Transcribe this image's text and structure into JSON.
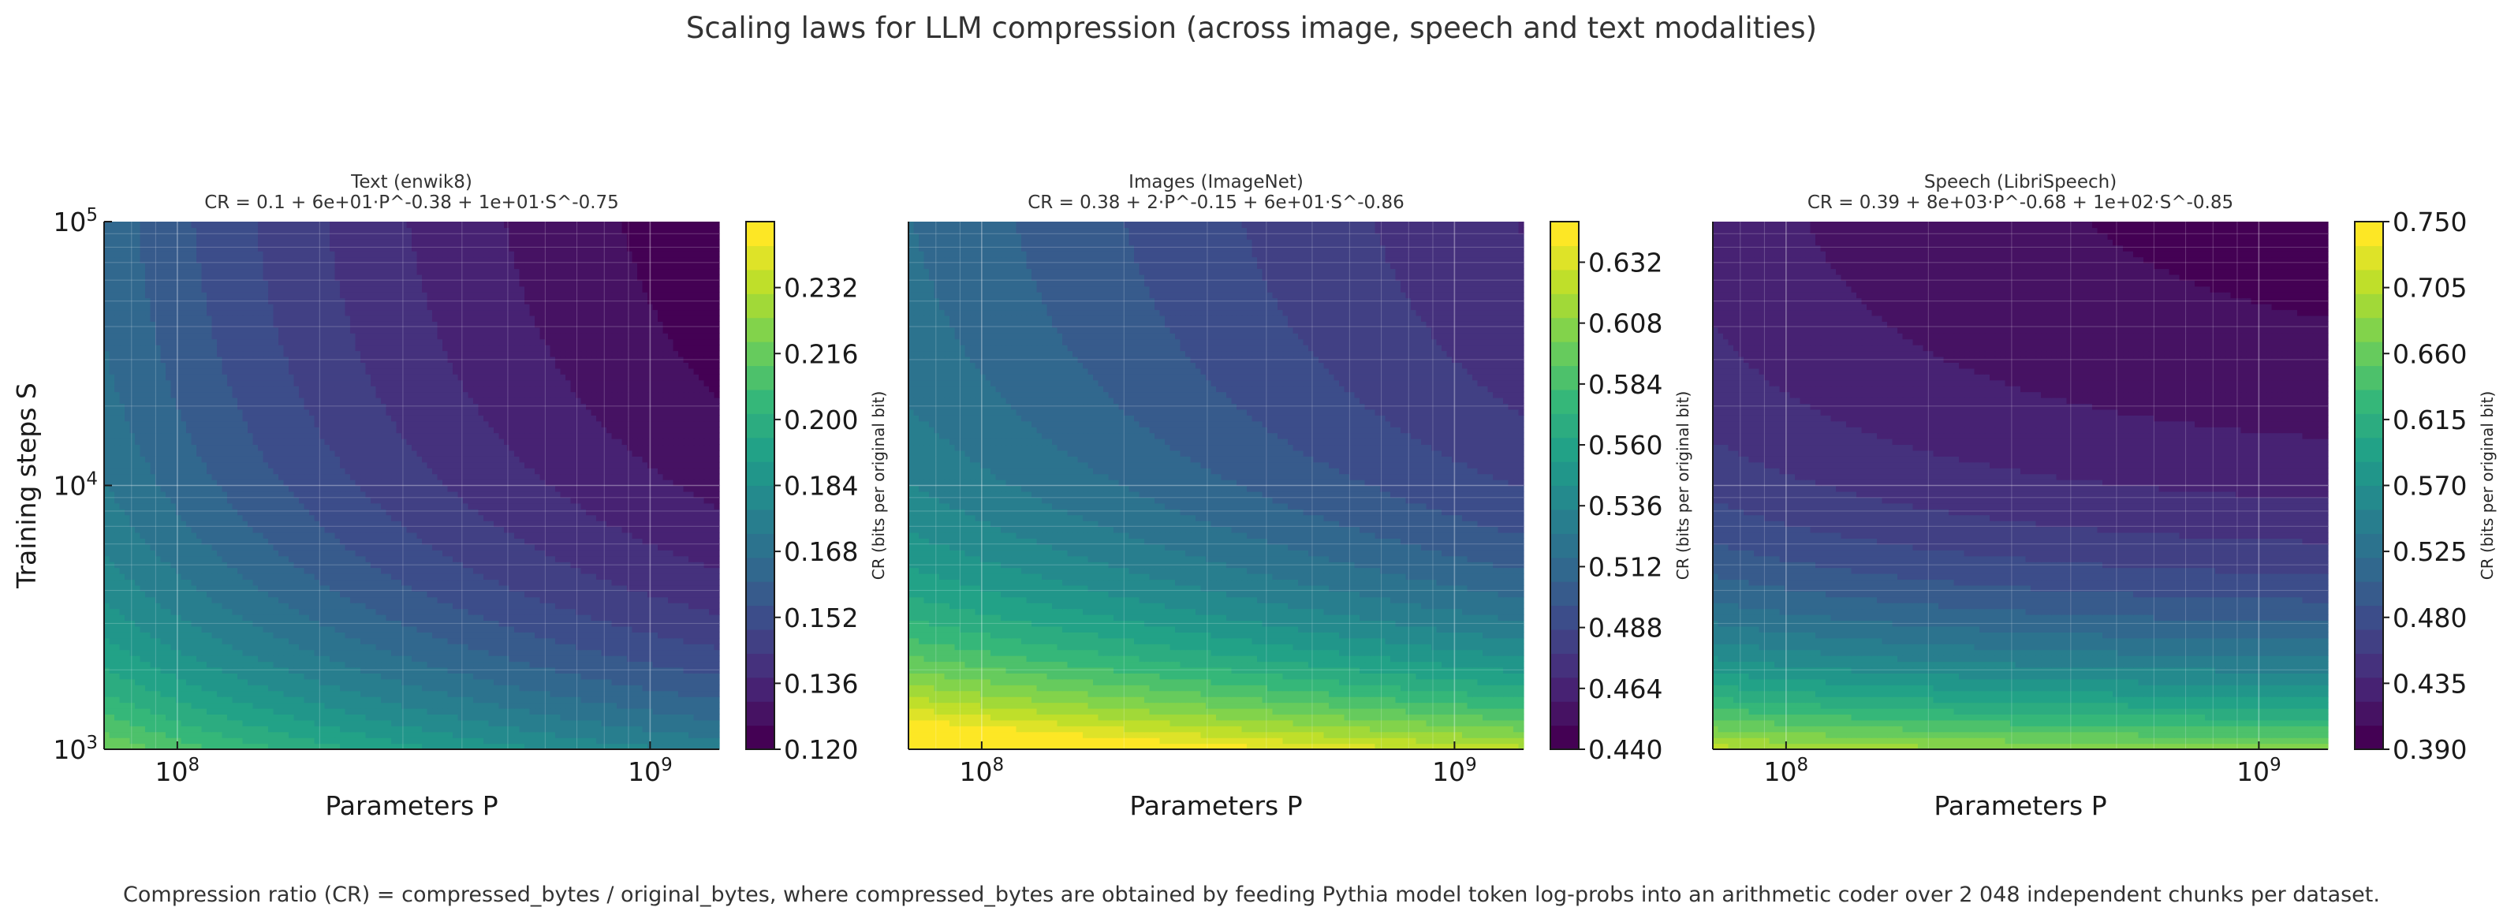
{
  "figure": {
    "suptitle": "Scaling laws for LLM compression (across image, speech and text modalities)",
    "footnote": "Compression ratio (CR) = compressed_bytes / original_bytes, where compressed_bytes are obtained by feeding Pythia model token log-probs into an arithmetic coder over 2 048 independent chunks per dataset.",
    "colormap": [
      "#440154",
      "#482878",
      "#3e4989",
      "#31688e",
      "#26828e",
      "#1f9e89",
      "#35b779",
      "#6ece58",
      "#b5de2b",
      "#fde725"
    ]
  },
  "chart_data": [
    {
      "type": "heatmap",
      "title": "Text (enwik8)",
      "subtitle": "CR = 0.1 + 6e+01·P^-0.38 + 1e+01·S^-0.75",
      "formula": {
        "E": 0.1,
        "A": 60,
        "alpha": 0.38,
        "B": 10,
        "beta": 0.75
      },
      "xlabel": "Parameters P",
      "ylabel": "Training steps S",
      "xscale": "log",
      "yscale": "log",
      "xlim": [
        70000000,
        1400000000
      ],
      "ylim": [
        1000,
        100000
      ],
      "xticks": [
        {
          "base": "10",
          "exp": "8",
          "value": 100000000
        },
        {
          "base": "10",
          "exp": "9",
          "value": 1000000000
        }
      ],
      "yticks": [
        {
          "base": "10",
          "exp": "3",
          "value": 1000
        },
        {
          "base": "10",
          "exp": "4",
          "value": 10000
        },
        {
          "base": "10",
          "exp": "5",
          "value": 100000
        }
      ],
      "colorbar": {
        "label": "CR (bits per original bit)",
        "range": [
          0.12,
          0.248
        ],
        "ticks": [
          "0.120",
          "0.136",
          "0.152",
          "0.168",
          "0.184",
          "0.200",
          "0.216",
          "0.232"
        ]
      },
      "grid": true
    },
    {
      "type": "heatmap",
      "title": "Images (ImageNet)",
      "subtitle": "CR = 0.38 + 2·P^-0.15 + 6e+01·S^-0.86",
      "formula": {
        "E": 0.38,
        "A": 2,
        "alpha": 0.15,
        "B": 60,
        "beta": 0.86
      },
      "xlabel": "Parameters P",
      "ylabel": "",
      "xscale": "log",
      "yscale": "log",
      "xlim": [
        70000000,
        1400000000
      ],
      "ylim": [
        1000,
        100000
      ],
      "xticks": [
        {
          "base": "10",
          "exp": "8",
          "value": 100000000
        },
        {
          "base": "10",
          "exp": "9",
          "value": 1000000000
        }
      ],
      "yticks": [],
      "colorbar": {
        "label": "CR (bits per original bit)",
        "range": [
          0.44,
          0.648
        ],
        "ticks": [
          "0.440",
          "0.464",
          "0.488",
          "0.512",
          "0.536",
          "0.560",
          "0.584",
          "0.608",
          "0.632"
        ]
      },
      "grid": true
    },
    {
      "type": "heatmap",
      "title": "Speech (LibriSpeech)",
      "subtitle": "CR = 0.39 + 8e+03·P^-0.68 + 1e+02·S^-0.85",
      "formula": {
        "E": 0.39,
        "A": 8000,
        "alpha": 0.68,
        "B": 100,
        "beta": 0.85
      },
      "xlabel": "Parameters P",
      "ylabel": "",
      "xscale": "log",
      "yscale": "log",
      "xlim": [
        70000000,
        1400000000
      ],
      "ylim": [
        1000,
        100000
      ],
      "xticks": [
        {
          "base": "10",
          "exp": "8",
          "value": 100000000
        },
        {
          "base": "10",
          "exp": "9",
          "value": 1000000000
        }
      ],
      "yticks": [],
      "colorbar": {
        "label": "CR (bits per original bit)",
        "range": [
          0.39,
          0.75
        ],
        "ticks": [
          "0.390",
          "0.435",
          "0.480",
          "0.525",
          "0.570",
          "0.615",
          "0.660",
          "0.705",
          "0.750"
        ]
      },
      "grid": true
    }
  ]
}
